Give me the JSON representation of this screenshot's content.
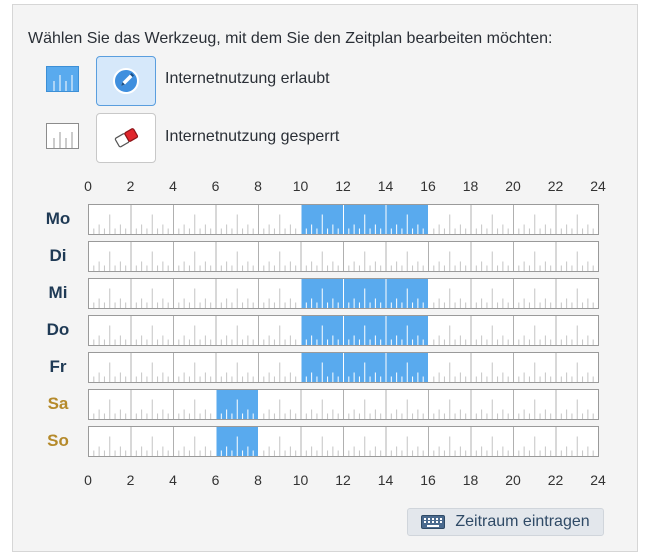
{
  "instruction": "Wählen Sie das Werkzeug, mit dem Sie den Zeitplan bearbeiten möchten:",
  "tools": {
    "allowed": {
      "label": "Internetnutzung erlaubt",
      "icon": "pen-icon"
    },
    "blocked": {
      "label": "Internetnutzung gesperrt",
      "icon": "eraser-icon"
    }
  },
  "colors": {
    "allowed": "#59aaee",
    "blocked": "#ffffff",
    "weekend": "#b58a2b",
    "weekday": "#1f3a55"
  },
  "axis": {
    "ticks": [
      "0",
      "2",
      "4",
      "6",
      "8",
      "10",
      "12",
      "14",
      "16",
      "18",
      "20",
      "22",
      "24"
    ]
  },
  "schedule": [
    {
      "day": "Mo",
      "weekend": false,
      "allowed": [
        [
          10,
          16
        ]
      ]
    },
    {
      "day": "Di",
      "weekend": false,
      "allowed": []
    },
    {
      "day": "Mi",
      "weekend": false,
      "allowed": [
        [
          10,
          16
        ]
      ]
    },
    {
      "day": "Do",
      "weekend": false,
      "allowed": [
        [
          10,
          16
        ]
      ]
    },
    {
      "day": "Fr",
      "weekend": false,
      "allowed": [
        [
          10,
          16
        ]
      ]
    },
    {
      "day": "Sa",
      "weekend": true,
      "allowed": [
        [
          6,
          8
        ]
      ]
    },
    {
      "day": "So",
      "weekend": true,
      "allowed": [
        [
          6,
          8
        ]
      ]
    }
  ],
  "entry_button": {
    "label": "Zeitraum eintragen",
    "icon": "keyboard-icon"
  }
}
